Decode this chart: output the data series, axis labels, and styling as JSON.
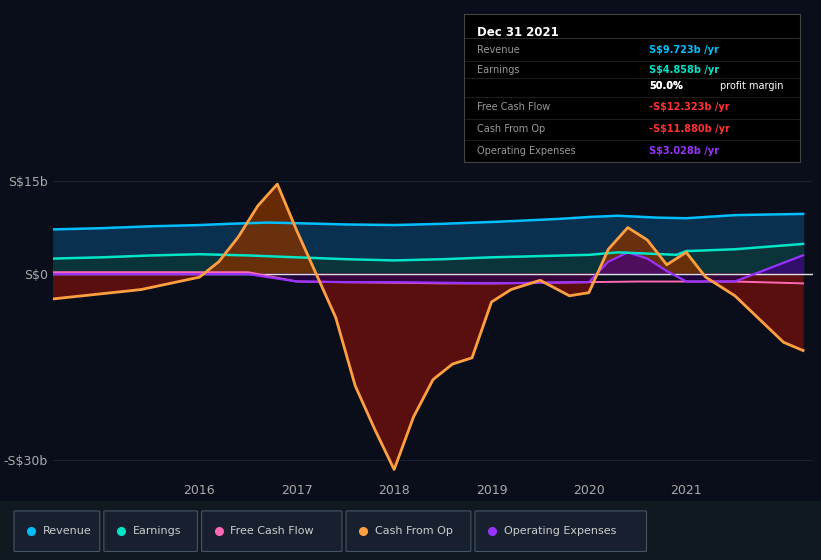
{
  "bg_color": "#0a0e1a",
  "plot_bg_color": "#0a0e1a",
  "title": "Dec 31 2021",
  "ylim": [
    -33,
    18
  ],
  "xlim": [
    2014.5,
    2022.3
  ],
  "yticks": [
    -30,
    0,
    15
  ],
  "ytick_labels": [
    "-S$30b",
    "S$0",
    "S$15b"
  ],
  "xtick_positions": [
    2016,
    2017,
    2018,
    2019,
    2020,
    2021
  ],
  "xtick_labels": [
    "2016",
    "2017",
    "2018",
    "2019",
    "2020",
    "2021"
  ],
  "revenue_x": [
    2014.5,
    2015.0,
    2015.5,
    2016.0,
    2016.3,
    2016.7,
    2017.0,
    2017.5,
    2018.0,
    2018.5,
    2019.0,
    2019.3,
    2019.7,
    2020.0,
    2020.3,
    2020.7,
    2021.0,
    2021.5,
    2022.2
  ],
  "revenue_y": [
    7.2,
    7.4,
    7.7,
    7.9,
    8.1,
    8.3,
    8.2,
    8.0,
    7.9,
    8.1,
    8.4,
    8.6,
    8.9,
    9.2,
    9.4,
    9.1,
    9.0,
    9.5,
    9.7
  ],
  "earnings_x": [
    2014.5,
    2015.0,
    2015.5,
    2016.0,
    2016.5,
    2017.0,
    2017.5,
    2018.0,
    2018.5,
    2019.0,
    2019.5,
    2020.0,
    2020.3,
    2020.6,
    2020.9,
    2021.0,
    2021.5,
    2022.2
  ],
  "earnings_y": [
    2.5,
    2.7,
    3.0,
    3.2,
    3.0,
    2.7,
    2.4,
    2.2,
    2.4,
    2.7,
    2.9,
    3.1,
    3.5,
    3.3,
    3.1,
    3.7,
    4.0,
    4.858
  ],
  "fcf_x": [
    2014.5,
    2015.0,
    2015.5,
    2016.0,
    2016.5,
    2017.0,
    2017.5,
    2018.0,
    2018.5,
    2019.0,
    2019.5,
    2020.0,
    2020.5,
    2021.0,
    2021.5,
    2022.2
  ],
  "fcf_y": [
    0.3,
    0.3,
    0.3,
    0.3,
    0.3,
    -1.2,
    -1.3,
    -1.4,
    -1.5,
    -1.5,
    -1.4,
    -1.3,
    -1.2,
    -1.2,
    -1.2,
    -1.5
  ],
  "cfo_x": [
    2014.5,
    2014.8,
    2015.1,
    2015.4,
    2015.7,
    2016.0,
    2016.2,
    2016.4,
    2016.6,
    2016.8,
    2017.0,
    2017.2,
    2017.4,
    2017.6,
    2017.8,
    2018.0,
    2018.2,
    2018.4,
    2018.6,
    2018.8,
    2019.0,
    2019.2,
    2019.5,
    2019.8,
    2020.0,
    2020.2,
    2020.4,
    2020.6,
    2020.8,
    2021.0,
    2021.2,
    2021.5,
    2022.0,
    2022.2
  ],
  "cfo_y": [
    -4.0,
    -3.5,
    -3.0,
    -2.5,
    -1.5,
    -0.5,
    2.0,
    6.0,
    11.0,
    14.5,
    7.0,
    0.0,
    -7.0,
    -18.0,
    -25.0,
    -31.5,
    -23.0,
    -17.0,
    -14.5,
    -13.5,
    -4.5,
    -2.5,
    -1.0,
    -3.5,
    -3.0,
    4.0,
    7.5,
    5.5,
    1.5,
    3.5,
    -0.5,
    -3.5,
    -11.0,
    -12.323
  ],
  "opex_x": [
    2014.5,
    2015.0,
    2015.5,
    2016.0,
    2016.5,
    2017.0,
    2017.5,
    2018.0,
    2018.5,
    2019.0,
    2019.5,
    2020.0,
    2020.2,
    2020.4,
    2020.6,
    2020.8,
    2021.0,
    2021.5,
    2022.2
  ],
  "opex_y": [
    0.0,
    0.0,
    0.0,
    0.0,
    0.0,
    -1.2,
    -1.3,
    -1.3,
    -1.4,
    -1.5,
    -1.4,
    -1.3,
    2.0,
    3.5,
    2.5,
    0.5,
    -1.2,
    -1.2,
    3.028
  ],
  "rev_color": "#00bfff",
  "rev_fill": "#0a3050",
  "ear_color": "#00e5c8",
  "ear_fill": "#0a3535",
  "cfo_color": "#ffa040",
  "cfo_fill_neg": "#5a0f0f",
  "cfo_fill_pos": "#7a3000",
  "fcf_color": "#ff69b4",
  "opex_color": "#9933ff",
  "opex_fill_neg": "#2a0050",
  "opex_fill_pos": "#440080",
  "zero_line_color": "#e0e0e0",
  "grid_color": "#1a2535",
  "tick_color": "#aaaaaa"
}
